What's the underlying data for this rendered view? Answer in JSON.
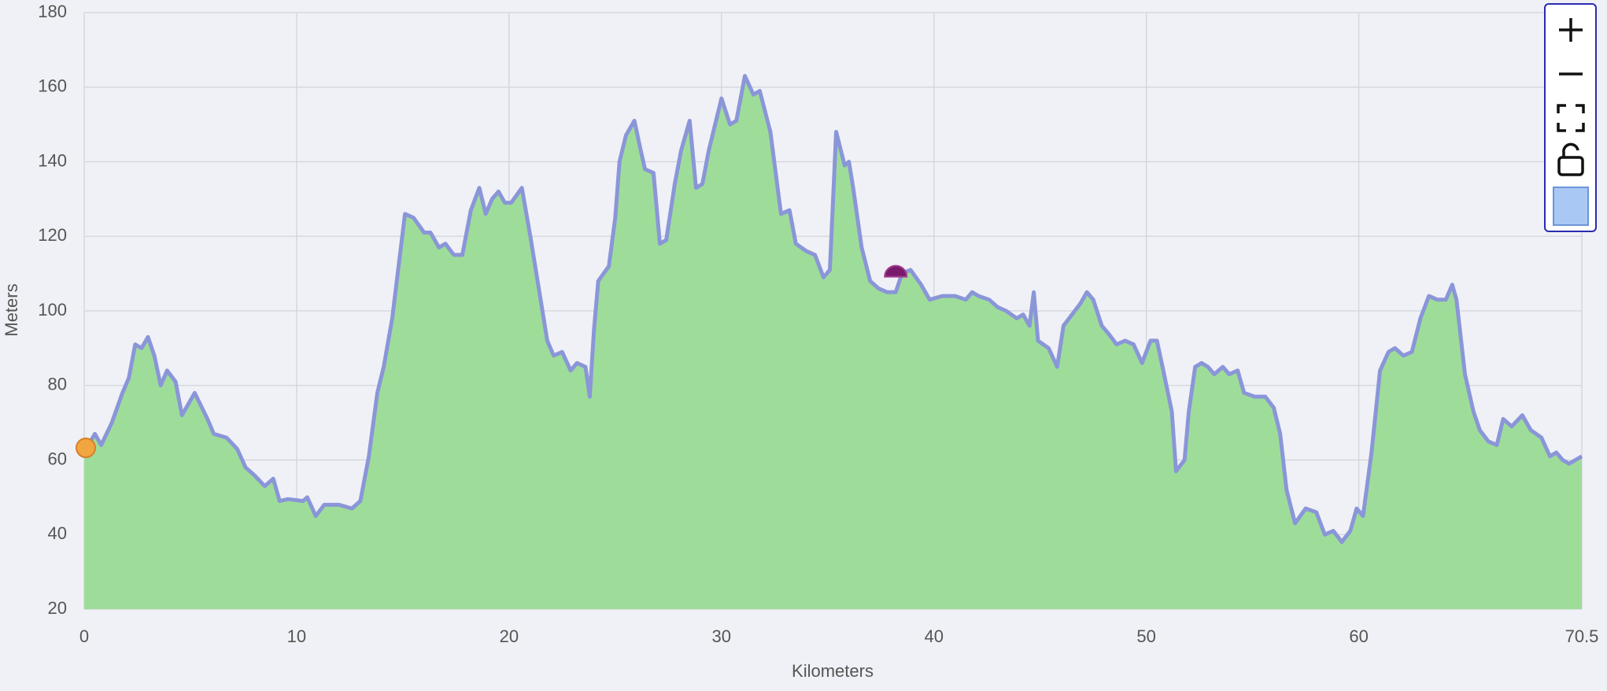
{
  "chart_data": {
    "type": "area",
    "xlabel": "Kilometers",
    "ylabel": "Meters",
    "x": [
      0,
      0.5,
      0.8,
      1.3,
      1.8,
      2.1,
      2.4,
      2.7,
      3,
      3.3,
      3.6,
      3.9,
      4.3,
      4.6,
      5.2,
      5.8,
      6.1,
      6.7,
      7.2,
      7.6,
      8,
      8.5,
      8.9,
      9.2,
      9.6,
      10.3,
      10.5,
      10.9,
      11.3,
      12,
      12.6,
      13,
      13.4,
      13.8,
      14.1,
      14.5,
      15.1,
      15.5,
      16,
      16.3,
      16.7,
      17,
      17.4,
      17.8,
      18.2,
      18.6,
      18.9,
      19.2,
      19.5,
      19.8,
      20.1,
      20.6,
      21,
      21.8,
      22.1,
      22.5,
      22.9,
      23.2,
      23.6,
      23.8,
      24,
      24.2,
      24.7,
      25,
      25.2,
      25.5,
      25.9,
      26.2,
      26.4,
      26.8,
      27.1,
      27.4,
      27.8,
      28.1,
      28.5,
      28.8,
      29.1,
      29.4,
      30,
      30.4,
      30.7,
      31.1,
      31.5,
      31.8,
      32.3,
      32.8,
      33.2,
      33.5,
      34,
      34.4,
      34.8,
      35.1,
      35.4,
      35.8,
      36,
      36.2,
      36.6,
      37,
      37.4,
      37.8,
      38.2,
      38.5,
      38.9,
      39.4,
      39.8,
      40.4,
      41,
      41.5,
      41.8,
      42.1,
      42.6,
      43,
      43.4,
      43.9,
      44.2,
      44.5,
      44.7,
      44.9,
      45.4,
      45.8,
      46.1,
      46.5,
      46.9,
      47.2,
      47.5,
      47.9,
      48.2,
      48.6,
      49,
      49.4,
      49.8,
      50.2,
      50.5,
      50.8,
      51.2,
      51.4,
      51.8,
      52,
      52.3,
      52.6,
      52.9,
      53.2,
      53.6,
      53.9,
      54.3,
      54.6,
      55.1,
      55.6,
      56,
      56.3,
      56.6,
      57,
      57.5,
      58,
      58.4,
      58.8,
      59.2,
      59.6,
      59.9,
      60.2,
      60.6,
      61,
      61.4,
      61.7,
      62.1,
      62.5,
      62.9,
      63.3,
      63.7,
      64.1,
      64.4,
      64.6,
      65,
      65.4,
      65.7,
      66.1,
      66.5,
      66.8,
      67.2,
      67.7,
      68.1,
      68.6,
      69,
      69.3,
      69.6,
      69.9,
      70.2,
      70.5
    ],
    "values": [
      62,
      67,
      64,
      70,
      78,
      82,
      91,
      90,
      93,
      88,
      80,
      84,
      81,
      72,
      78,
      71,
      67,
      66,
      63,
      58,
      56,
      53,
      55,
      49,
      49.5,
      49,
      50,
      45,
      48,
      48,
      47,
      49,
      61,
      78,
      85,
      98,
      126,
      125,
      121,
      121,
      117,
      118,
      115,
      115,
      127,
      133,
      126,
      130,
      132,
      129,
      129,
      133,
      120,
      92,
      88,
      89,
      84,
      86,
      85,
      77,
      95,
      108,
      112,
      125,
      140,
      147,
      151,
      143,
      138,
      137,
      118,
      119,
      134,
      143,
      151,
      133,
      134,
      143,
      157,
      150,
      151,
      163,
      158,
      159,
      148,
      126,
      127,
      118,
      116,
      115,
      109,
      111,
      148,
      139,
      140,
      133,
      117,
      108,
      106,
      105,
      105,
      110,
      111,
      107,
      103,
      104,
      104,
      103,
      105,
      104,
      103,
      101,
      100,
      98,
      99,
      96,
      105,
      92,
      90,
      85,
      96,
      99,
      102,
      105,
      103,
      96,
      94,
      91,
      92,
      91,
      86,
      92,
      92,
      84,
      73,
      57,
      60,
      73,
      85,
      86,
      85,
      83,
      85,
      83,
      84,
      78,
      77,
      77,
      74,
      67,
      52,
      43,
      47,
      46,
      40,
      41,
      38,
      41,
      47,
      45,
      62,
      84,
      89,
      90,
      88,
      89,
      98,
      104,
      103,
      103,
      107,
      103,
      83,
      73,
      68,
      65,
      64,
      71,
      69,
      72,
      68,
      66,
      61,
      62,
      60,
      59,
      60,
      61
    ],
    "color": "#8a96d8",
    "fill": "#9edd99",
    "xlim": [
      0,
      70.5
    ],
    "ylim": [
      20,
      180
    ],
    "xticks": [
      0,
      10,
      20,
      30,
      40,
      50,
      60,
      70.5
    ],
    "yticks": [
      20,
      40,
      60,
      80,
      100,
      120,
      140,
      160,
      180
    ],
    "grid": true
  }
}
